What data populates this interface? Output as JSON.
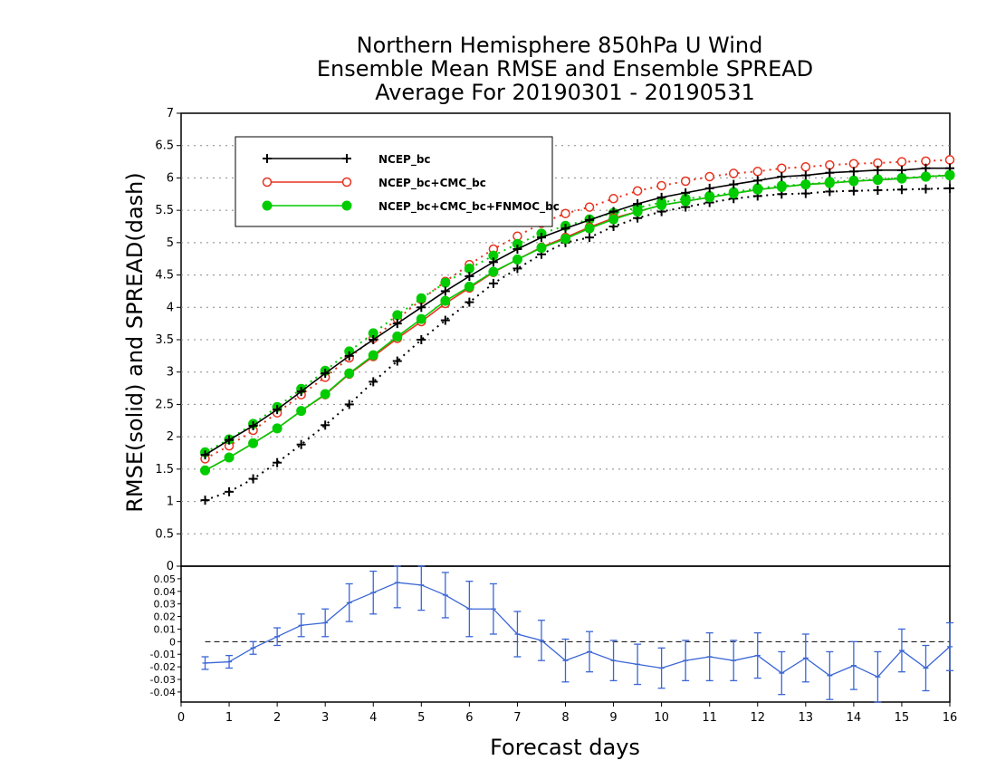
{
  "title_lines": [
    "Northern Hemisphere 850hPa U Wind",
    "Ensemble Mean RMSE and Ensemble SPREAD",
    "Average For 20190301 - 20190531"
  ],
  "chart_data": [
    {
      "type": "line",
      "ylabel": "RMSE(solid) and SPREAD(dash)",
      "xlim": [
        0,
        16
      ],
      "ylim": [
        0,
        7
      ],
      "yticks": [
        0,
        0.5,
        1,
        1.5,
        2,
        2.5,
        3,
        3.5,
        4,
        4.5,
        5,
        5.5,
        6,
        6.5,
        7
      ],
      "ytick_labels": [
        "0",
        "0.5",
        "1",
        "1.5",
        "2",
        "2.5",
        "3",
        "3.5",
        "4",
        "4.5",
        "5",
        "5.5",
        "6",
        "6.5",
        "7"
      ],
      "grid": true,
      "legend_position": "top-left",
      "x": [
        0.5,
        1,
        1.5,
        2,
        2.5,
        3,
        3.5,
        4,
        4.5,
        5,
        5.5,
        6,
        6.5,
        7,
        7.5,
        8,
        8.5,
        9,
        9.5,
        10,
        10.5,
        11,
        11.5,
        12,
        12.5,
        13,
        13.5,
        14,
        14.5,
        15,
        15.5,
        16
      ],
      "series": [
        {
          "name": "NCEP_bc",
          "line_style": "solid",
          "color": "#000000",
          "marker": "plus",
          "values": [
            1.72,
            1.95,
            2.17,
            2.42,
            2.7,
            2.98,
            3.25,
            3.5,
            3.75,
            4.0,
            4.25,
            4.48,
            4.7,
            4.9,
            5.08,
            5.22,
            5.35,
            5.48,
            5.6,
            5.7,
            5.77,
            5.84,
            5.9,
            5.96,
            6.02,
            6.04,
            6.08,
            6.1,
            6.12,
            6.12,
            6.15,
            6.15
          ]
        },
        {
          "name": "",
          "line_style": "dash",
          "color": "#000000",
          "marker": "plus",
          "values": [
            1.02,
            1.15,
            1.35,
            1.6,
            1.88,
            2.18,
            2.5,
            2.85,
            3.17,
            3.5,
            3.8,
            4.08,
            4.37,
            4.6,
            4.82,
            5.0,
            5.08,
            5.25,
            5.38,
            5.48,
            5.55,
            5.62,
            5.68,
            5.72,
            5.75,
            5.76,
            5.79,
            5.8,
            5.81,
            5.82,
            5.83,
            5.84
          ]
        },
        {
          "name": "NCEP_bc+CMC_bc",
          "line_style": "solid",
          "color": "#e8321e",
          "marker": "open-circle",
          "values": [
            1.48,
            1.68,
            1.9,
            2.13,
            2.4,
            2.65,
            2.97,
            3.24,
            3.52,
            3.78,
            4.06,
            4.3,
            4.54,
            4.74,
            4.93,
            5.08,
            5.24,
            5.38,
            5.48,
            5.58,
            5.64,
            5.7,
            5.76,
            5.82,
            5.86,
            5.9,
            5.92,
            5.95,
            5.97,
            5.99,
            6.02,
            6.04
          ]
        },
        {
          "name": "",
          "line_style": "dash",
          "color": "#e8321e",
          "marker": "open-circle",
          "values": [
            1.66,
            1.86,
            2.1,
            2.37,
            2.65,
            2.92,
            3.22,
            3.52,
            3.82,
            4.12,
            4.4,
            4.66,
            4.9,
            5.1,
            5.3,
            5.45,
            5.55,
            5.68,
            5.8,
            5.88,
            5.95,
            6.02,
            6.07,
            6.1,
            6.15,
            6.17,
            6.2,
            6.22,
            6.23,
            6.25,
            6.26,
            6.28
          ]
        },
        {
          "name": "NCEP_bc+CMC_bc+FNMOC_bc",
          "line_style": "solid",
          "color": "#00cc00",
          "marker": "filled-circle",
          "values": [
            1.48,
            1.68,
            1.9,
            2.13,
            2.4,
            2.66,
            2.98,
            3.26,
            3.55,
            3.82,
            4.1,
            4.32,
            4.55,
            4.74,
            4.92,
            5.06,
            5.22,
            5.36,
            5.48,
            5.58,
            5.64,
            5.7,
            5.76,
            5.82,
            5.86,
            5.9,
            5.92,
            5.95,
            5.97,
            5.99,
            6.02,
            6.04
          ]
        },
        {
          "name": "",
          "line_style": "dash",
          "color": "#00cc00",
          "marker": "filled-circle",
          "values": [
            1.76,
            1.96,
            2.2,
            2.46,
            2.74,
            3.02,
            3.32,
            3.6,
            3.88,
            4.14,
            4.38,
            4.6,
            4.8,
            4.98,
            5.14,
            5.26,
            5.36,
            5.46,
            5.54,
            5.62,
            5.68,
            5.72,
            5.78,
            5.84,
            5.88,
            5.9,
            5.94,
            5.96,
            5.98,
            6.0,
            6.02,
            6.05
          ]
        }
      ]
    },
    {
      "type": "line",
      "subtype": "errorbar",
      "xlabel": "Forecast days",
      "xlim": [
        0,
        16
      ],
      "xticks": [
        0,
        1,
        2,
        3,
        4,
        5,
        6,
        7,
        8,
        9,
        10,
        11,
        12,
        13,
        14,
        15,
        16
      ],
      "xtick_labels": [
        "0",
        "1",
        "2",
        "3",
        "4",
        "5",
        "6",
        "7",
        "8",
        "9",
        "10",
        "11",
        "12",
        "13",
        "14",
        "15",
        "16"
      ],
      "ylim": [
        -0.048,
        0.06
      ],
      "yticks": [
        -0.04,
        -0.03,
        -0.02,
        -0.01,
        0,
        0.01,
        0.02,
        0.03,
        0.04,
        0.05
      ],
      "ytick_labels": [
        "-0.04",
        "-0.03",
        "-0.02",
        "-0.01",
        "0",
        "0.01",
        "0.02",
        "0.03",
        "0.04",
        "0.05"
      ],
      "reference_line": 0,
      "series": [
        {
          "name": "",
          "color": "#3a66d6",
          "x": [
            0.5,
            1,
            1.5,
            2,
            2.5,
            3,
            3.5,
            4,
            4.5,
            5,
            5.5,
            6,
            6.5,
            7,
            7.5,
            8,
            8.5,
            9,
            9.5,
            10,
            10.5,
            11,
            11.5,
            12,
            12.5,
            13,
            13.5,
            14,
            14.5,
            15,
            15.5,
            16
          ],
          "values": [
            -0.017,
            -0.016,
            -0.005,
            0.004,
            0.013,
            0.015,
            0.031,
            0.039,
            0.047,
            0.045,
            0.037,
            0.026,
            0.026,
            0.006,
            0.001,
            -0.015,
            -0.008,
            -0.015,
            -0.018,
            -0.021,
            -0.015,
            -0.012,
            -0.015,
            -0.011,
            -0.025,
            -0.013,
            -0.027,
            -0.019,
            -0.028,
            -0.007,
            -0.021,
            -0.004
          ],
          "errors": [
            0.005,
            0.005,
            0.005,
            0.007,
            0.009,
            0.011,
            0.015,
            0.017,
            0.02,
            0.02,
            0.018,
            0.022,
            0.02,
            0.018,
            0.016,
            0.017,
            0.016,
            0.016,
            0.016,
            0.016,
            0.016,
            0.019,
            0.016,
            0.018,
            0.017,
            0.019,
            0.019,
            0.019,
            0.02,
            0.017,
            0.018,
            0.019
          ]
        }
      ]
    }
  ]
}
